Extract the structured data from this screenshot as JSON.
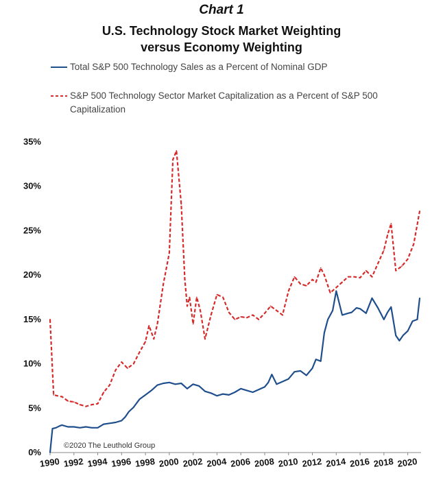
{
  "header": {
    "kicker": "Chart 1",
    "title_line1": "U.S. Technology Stock Market Weighting",
    "title_line2": "versus Economy Weighting"
  },
  "legend": {
    "series1": "Total S&P 500 Technology Sales as a Percent of Nominal GDP",
    "series2": "S&P 500 Technology Sector Market Capitalization as a Percent of S&P 500 Capitalization"
  },
  "credit": "©2020 The Leuthold Group",
  "colors": {
    "series1": "#1f4e8c",
    "series2": "#d62b2b"
  },
  "chart_data": {
    "type": "line",
    "title": "",
    "xlabel": "",
    "ylabel": "",
    "xlim": [
      1990,
      2021
    ],
    "ylim": [
      0,
      0.35
    ],
    "grid": false,
    "legend_placement": "top",
    "x_ticks": [
      "1990",
      "1992",
      "1994",
      "1996",
      "1998",
      "2000",
      "2002",
      "2004",
      "2006",
      "2008",
      "2010",
      "2012",
      "2014",
      "2016",
      "2018",
      "2020"
    ],
    "y_ticks": [
      "0%",
      "5%",
      "10%",
      "15%",
      "20%",
      "25%",
      "30%",
      "35%"
    ],
    "y_tick_values": [
      0,
      0.05,
      0.1,
      0.15,
      0.2,
      0.25,
      0.3,
      0.35
    ],
    "series": [
      {
        "key": "series1",
        "style": "solid",
        "x": [
          1990.0,
          1990.2,
          1990.5,
          1990.8,
          1991.0,
          1991.5,
          1992.0,
          1992.5,
          1993.0,
          1993.5,
          1994.0,
          1994.5,
          1995.0,
          1995.5,
          1996.0,
          1996.3,
          1996.6,
          1997.0,
          1997.5,
          1998.0,
          1998.5,
          1999.0,
          1999.5,
          2000.0,
          2000.5,
          2001.0,
          2001.5,
          2002.0,
          2002.5,
          2003.0,
          2003.5,
          2004.0,
          2004.5,
          2005.0,
          2005.5,
          2006.0,
          2006.5,
          2007.0,
          2007.5,
          2008.0,
          2008.3,
          2008.6,
          2009.0,
          2009.5,
          2010.0,
          2010.5,
          2011.0,
          2011.5,
          2012.0,
          2012.3,
          2012.7,
          2013.0,
          2013.3,
          2013.7,
          2014.0,
          2014.5,
          2015.0,
          2015.3,
          2015.7,
          2016.0,
          2016.5,
          2017.0,
          2017.5,
          2018.0,
          2018.3,
          2018.6,
          2019.0,
          2019.3,
          2019.6,
          2020.0,
          2020.4,
          2020.8,
          2021.0
        ],
        "y": [
          0.0,
          0.027,
          0.028,
          0.03,
          0.031,
          0.029,
          0.029,
          0.028,
          0.029,
          0.028,
          0.028,
          0.032,
          0.033,
          0.034,
          0.036,
          0.04,
          0.046,
          0.051,
          0.06,
          0.065,
          0.07,
          0.076,
          0.078,
          0.079,
          0.077,
          0.078,
          0.072,
          0.077,
          0.075,
          0.069,
          0.067,
          0.064,
          0.066,
          0.065,
          0.068,
          0.072,
          0.07,
          0.068,
          0.071,
          0.074,
          0.079,
          0.088,
          0.077,
          0.08,
          0.083,
          0.091,
          0.092,
          0.087,
          0.095,
          0.105,
          0.103,
          0.135,
          0.15,
          0.16,
          0.182,
          0.155,
          0.157,
          0.158,
          0.163,
          0.162,
          0.157,
          0.174,
          0.163,
          0.15,
          0.158,
          0.164,
          0.132,
          0.126,
          0.132,
          0.137,
          0.148,
          0.15,
          0.174
        ]
      },
      {
        "key": "series2",
        "style": "dashed",
        "x": [
          1990.0,
          1990.3,
          1990.6,
          1991.0,
          1991.5,
          1992.0,
          1992.5,
          1993.0,
          1993.5,
          1994.0,
          1994.5,
          1995.0,
          1995.5,
          1996.0,
          1996.5,
          1997.0,
          1997.5,
          1998.0,
          1998.3,
          1998.7,
          1999.0,
          1999.5,
          2000.0,
          2000.3,
          2000.6,
          2001.0,
          2001.3,
          2001.5,
          2001.7,
          2002.0,
          2002.3,
          2002.6,
          2003.0,
          2003.5,
          2004.0,
          2004.5,
          2005.0,
          2005.5,
          2006.0,
          2006.5,
          2007.0,
          2007.5,
          2008.0,
          2008.5,
          2009.0,
          2009.5,
          2010.0,
          2010.5,
          2011.0,
          2011.5,
          2012.0,
          2012.3,
          2012.7,
          2013.0,
          2013.5,
          2014.0,
          2014.5,
          2015.0,
          2015.5,
          2016.0,
          2016.5,
          2017.0,
          2017.5,
          2018.0,
          2018.3,
          2018.6,
          2019.0,
          2019.5,
          2020.0,
          2020.5,
          2021.0
        ],
        "y": [
          0.15,
          0.065,
          0.064,
          0.063,
          0.058,
          0.057,
          0.054,
          0.052,
          0.054,
          0.055,
          0.068,
          0.076,
          0.093,
          0.102,
          0.095,
          0.1,
          0.113,
          0.125,
          0.143,
          0.128,
          0.145,
          0.19,
          0.225,
          0.33,
          0.34,
          0.28,
          0.195,
          0.165,
          0.175,
          0.145,
          0.175,
          0.16,
          0.128,
          0.155,
          0.178,
          0.175,
          0.158,
          0.15,
          0.153,
          0.152,
          0.155,
          0.15,
          0.157,
          0.165,
          0.16,
          0.155,
          0.182,
          0.198,
          0.19,
          0.188,
          0.195,
          0.192,
          0.208,
          0.2,
          0.18,
          0.186,
          0.192,
          0.198,
          0.198,
          0.197,
          0.205,
          0.198,
          0.213,
          0.228,
          0.245,
          0.258,
          0.205,
          0.21,
          0.218,
          0.235,
          0.272
        ]
      }
    ]
  }
}
